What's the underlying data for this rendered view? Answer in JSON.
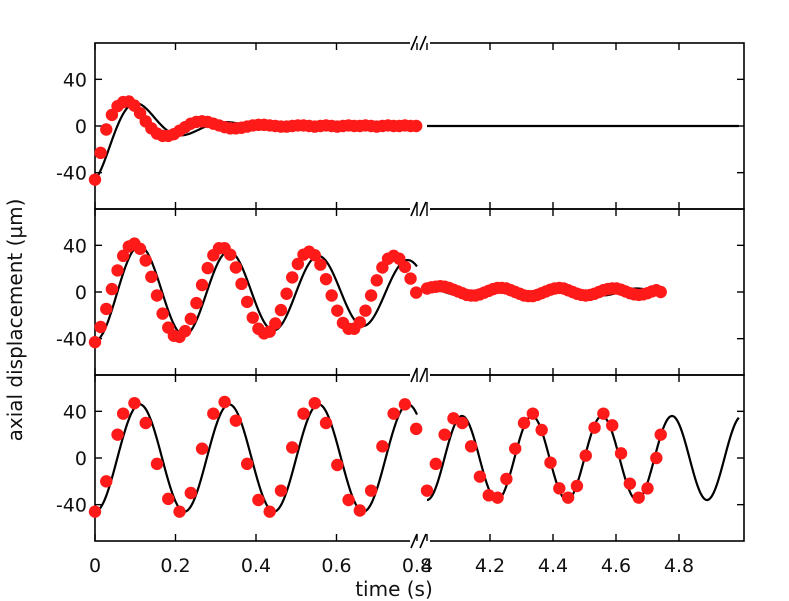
{
  "chart_data": {
    "type": "scatter",
    "ylabel": "axial displacement (µm)",
    "xlabel": "time (s)",
    "x_tick_labels": [
      "0",
      "0.2",
      "0.4",
      "0.6",
      "0.8",
      "4",
      "4.2",
      "4.4",
      "4.6",
      "4.8"
    ],
    "y_tick_labels": [
      "40",
      "0",
      "-40"
    ],
    "ylim": [
      -60,
      60
    ],
    "xlim_left": [
      0,
      0.85
    ],
    "xlim_right": [
      4.0,
      4.99
    ],
    "broken_x_axis": true,
    "grid": false,
    "colors": {
      "points": "#ff1a1a",
      "fit": "#000000"
    },
    "panels": [
      {
        "name": "top",
        "fit": {
          "amplitude": -46,
          "frequency_hz": 4.5,
          "decay_per_s": 8.0,
          "t_end": 0.8,
          "right_amplitude": 0
        },
        "points": [
          [
            0.0,
            -46.0
          ],
          [
            0.014,
            -23.0
          ],
          [
            0.028,
            -3.0
          ],
          [
            0.042,
            9.5
          ],
          [
            0.056,
            17.0
          ],
          [
            0.07,
            20.5
          ],
          [
            0.084,
            21.0
          ],
          [
            0.098,
            17.5
          ],
          [
            0.112,
            11.0
          ],
          [
            0.126,
            4.0
          ],
          [
            0.14,
            -2.0
          ],
          [
            0.154,
            -6.5
          ],
          [
            0.168,
            -8.5
          ],
          [
            0.182,
            -8.5
          ],
          [
            0.196,
            -7.0
          ],
          [
            0.21,
            -4.0
          ],
          [
            0.224,
            -1.0
          ],
          [
            0.238,
            2.0
          ],
          [
            0.252,
            3.5
          ],
          [
            0.266,
            4.0
          ],
          [
            0.28,
            3.5
          ],
          [
            0.294,
            2.0
          ],
          [
            0.308,
            0.5
          ],
          [
            0.322,
            -1.0
          ],
          [
            0.336,
            -2.0
          ],
          [
            0.35,
            -2.0
          ],
          [
            0.364,
            -1.5
          ],
          [
            0.378,
            -0.5
          ],
          [
            0.392,
            0.5
          ],
          [
            0.406,
            1.0
          ],
          [
            0.42,
            1.0
          ],
          [
            0.434,
            0.5
          ],
          [
            0.448,
            0.0
          ],
          [
            0.462,
            -0.5
          ],
          [
            0.476,
            -0.5
          ],
          [
            0.49,
            0.0
          ],
          [
            0.504,
            0.5
          ],
          [
            0.518,
            0.5
          ],
          [
            0.532,
            0.0
          ],
          [
            0.546,
            -0.5
          ],
          [
            0.56,
            0.0
          ],
          [
            0.574,
            0.5
          ],
          [
            0.588,
            0.0
          ],
          [
            0.602,
            -0.5
          ],
          [
            0.616,
            0.0
          ],
          [
            0.63,
            0.5
          ],
          [
            0.644,
            0.0
          ],
          [
            0.658,
            0.0
          ],
          [
            0.672,
            0.5
          ],
          [
            0.686,
            0.0
          ],
          [
            0.7,
            -0.5
          ],
          [
            0.714,
            0.0
          ],
          [
            0.728,
            0.5
          ],
          [
            0.742,
            0.0
          ],
          [
            0.756,
            0.0
          ],
          [
            0.77,
            0.5
          ],
          [
            0.784,
            0.0
          ],
          [
            0.798,
            0.0
          ]
        ],
        "points_right": []
      },
      {
        "name": "middle",
        "fit": {
          "amplitude": -42,
          "frequency_hz": 4.5,
          "decay_per_s": 0.55,
          "t_end": 0.8,
          "right": {
            "amplitude": 3,
            "frequency_hz": 4.5,
            "t_end": 4.74
          }
        },
        "points": [
          [
            0.0,
            -43.0
          ],
          [
            0.014,
            -30.0
          ],
          [
            0.028,
            -14.5
          ],
          [
            0.042,
            2.5
          ],
          [
            0.056,
            18.5
          ],
          [
            0.07,
            31.0
          ],
          [
            0.084,
            39.0
          ],
          [
            0.098,
            41.5
          ],
          [
            0.112,
            37.0
          ],
          [
            0.126,
            27.0
          ],
          [
            0.14,
            13.0
          ],
          [
            0.154,
            -3.0
          ],
          [
            0.168,
            -18.5
          ],
          [
            0.182,
            -30.5
          ],
          [
            0.196,
            -37.5
          ],
          [
            0.21,
            -38.5
          ],
          [
            0.224,
            -33.5
          ],
          [
            0.238,
            -23.0
          ],
          [
            0.252,
            -9.5
          ],
          [
            0.266,
            6.0
          ],
          [
            0.28,
            20.5
          ],
          [
            0.294,
            31.5
          ],
          [
            0.308,
            37.5
          ],
          [
            0.322,
            37.5
          ],
          [
            0.336,
            32.0
          ],
          [
            0.35,
            21.0
          ],
          [
            0.364,
            7.0
          ],
          [
            0.378,
            -8.5
          ],
          [
            0.392,
            -22.0
          ],
          [
            0.406,
            -31.5
          ],
          [
            0.42,
            -35.5
          ],
          [
            0.434,
            -34.0
          ],
          [
            0.448,
            -27.0
          ],
          [
            0.462,
            -15.5
          ],
          [
            0.476,
            -1.5
          ],
          [
            0.49,
            12.5
          ],
          [
            0.504,
            24.0
          ],
          [
            0.518,
            32.0
          ],
          [
            0.532,
            34.5
          ],
          [
            0.546,
            31.5
          ],
          [
            0.56,
            23.5
          ],
          [
            0.574,
            11.0
          ],
          [
            0.588,
            -3.0
          ],
          [
            0.602,
            -16.0
          ],
          [
            0.616,
            -26.5
          ],
          [
            0.63,
            -31.5
          ],
          [
            0.644,
            -31.5
          ],
          [
            0.658,
            -26.0
          ],
          [
            0.672,
            -16.0
          ],
          [
            0.686,
            -3.0
          ],
          [
            0.7,
            10.0
          ],
          [
            0.714,
            21.0
          ],
          [
            0.728,
            28.5
          ],
          [
            0.742,
            31.0
          ],
          [
            0.756,
            28.5
          ],
          [
            0.77,
            21.5
          ],
          [
            0.784,
            11.5
          ],
          [
            0.798,
            -0.5
          ]
        ],
        "points_right": [
          [
            4.0,
            3.0
          ],
          [
            4.014,
            4.0
          ],
          [
            4.028,
            4.5
          ],
          [
            4.042,
            5.0
          ],
          [
            4.056,
            4.5
          ],
          [
            4.07,
            3.5
          ],
          [
            4.084,
            2.0
          ],
          [
            4.098,
            0.5
          ],
          [
            4.112,
            -1.0
          ],
          [
            4.126,
            -2.5
          ],
          [
            4.14,
            -3.0
          ],
          [
            4.154,
            -3.0
          ],
          [
            4.168,
            -2.0
          ],
          [
            4.182,
            -0.5
          ],
          [
            4.196,
            1.0
          ],
          [
            4.21,
            2.5
          ],
          [
            4.224,
            3.5
          ],
          [
            4.238,
            3.5
          ],
          [
            4.252,
            3.0
          ],
          [
            4.266,
            1.5
          ],
          [
            4.28,
            0.0
          ],
          [
            4.294,
            -1.5
          ],
          [
            4.308,
            -3.0
          ],
          [
            4.322,
            -3.5
          ],
          [
            4.336,
            -3.5
          ],
          [
            4.35,
            -2.5
          ],
          [
            4.364,
            -1.0
          ],
          [
            4.378,
            0.5
          ],
          [
            4.392,
            2.0
          ],
          [
            4.406,
            3.0
          ],
          [
            4.42,
            3.5
          ],
          [
            4.434,
            3.0
          ],
          [
            4.448,
            1.5
          ],
          [
            4.462,
            0.0
          ],
          [
            4.476,
            -1.5
          ],
          [
            4.49,
            -2.5
          ],
          [
            4.504,
            -3.0
          ],
          [
            4.518,
            -2.5
          ],
          [
            4.532,
            -1.5
          ],
          [
            4.546,
            0.0
          ],
          [
            4.56,
            1.5
          ],
          [
            4.574,
            2.5
          ],
          [
            4.588,
            3.0
          ],
          [
            4.602,
            3.0
          ],
          [
            4.616,
            2.0
          ],
          [
            4.63,
            0.5
          ],
          [
            4.644,
            -1.0
          ],
          [
            4.658,
            -2.0
          ],
          [
            4.672,
            -2.5
          ],
          [
            4.686,
            -2.0
          ],
          [
            4.7,
            -1.0
          ],
          [
            4.714,
            0.5
          ],
          [
            4.728,
            1.5
          ],
          [
            4.742,
            0.0
          ]
        ]
      },
      {
        "name": "bottom",
        "fit": {
          "amplitude": -46,
          "frequency_hz": 4.5,
          "decay_per_s": 0.0,
          "t_end": 0.8,
          "right": {
            "amplitude": -36,
            "frequency_hz": 4.5,
            "t_end": 4.74
          }
        },
        "points": [
          [
            0.0,
            -46.0
          ],
          [
            0.028,
            -20.0
          ],
          [
            0.056,
            20.0
          ],
          [
            0.07,
            38.0
          ],
          [
            0.098,
            47.0
          ],
          [
            0.126,
            30.0
          ],
          [
            0.154,
            -5.0
          ],
          [
            0.182,
            -35.0
          ],
          [
            0.21,
            -46.0
          ],
          [
            0.238,
            -30.0
          ],
          [
            0.266,
            8.0
          ],
          [
            0.294,
            38.0
          ],
          [
            0.322,
            48.0
          ],
          [
            0.35,
            32.0
          ],
          [
            0.378,
            -5.0
          ],
          [
            0.406,
            -36.0
          ],
          [
            0.434,
            -46.0
          ],
          [
            0.462,
            -28.0
          ],
          [
            0.49,
            9.0
          ],
          [
            0.518,
            38.0
          ],
          [
            0.546,
            47.0
          ],
          [
            0.574,
            30.0
          ],
          [
            0.602,
            -6.0
          ],
          [
            0.63,
            -36.0
          ],
          [
            0.658,
            -45.0
          ],
          [
            0.686,
            -28.0
          ],
          [
            0.714,
            10.0
          ],
          [
            0.742,
            38.0
          ],
          [
            0.77,
            46.0
          ],
          [
            0.798,
            25.0
          ]
        ],
        "points_right": [
          [
            4.0,
            -28.0
          ],
          [
            4.028,
            -5.0
          ],
          [
            4.056,
            20.0
          ],
          [
            4.084,
            34.0
          ],
          [
            4.112,
            30.0
          ],
          [
            4.14,
            10.0
          ],
          [
            4.168,
            -16.0
          ],
          [
            4.196,
            -32.0
          ],
          [
            4.224,
            -34.0
          ],
          [
            4.252,
            -18.0
          ],
          [
            4.28,
            8.0
          ],
          [
            4.308,
            30.0
          ],
          [
            4.336,
            38.0
          ],
          [
            4.364,
            24.0
          ],
          [
            4.392,
            -4.0
          ],
          [
            4.42,
            -26.0
          ],
          [
            4.448,
            -34.0
          ],
          [
            4.476,
            -24.0
          ],
          [
            4.504,
            2.0
          ],
          [
            4.532,
            26.0
          ],
          [
            4.56,
            38.0
          ],
          [
            4.588,
            28.0
          ],
          [
            4.616,
            4.0
          ],
          [
            4.644,
            -22.0
          ],
          [
            4.672,
            -34.0
          ],
          [
            4.7,
            -26.0
          ],
          [
            4.728,
            0.0
          ],
          [
            4.742,
            20.0
          ]
        ]
      }
    ]
  }
}
